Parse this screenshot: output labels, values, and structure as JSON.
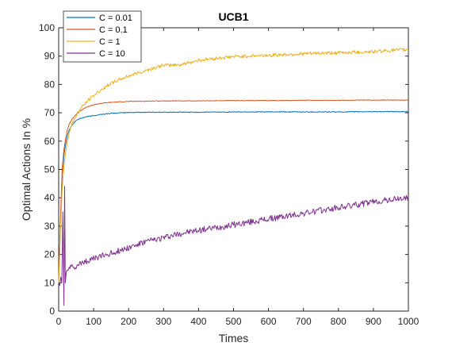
{
  "chart_data": {
    "type": "line",
    "title": "UCB1",
    "xlabel": "Times",
    "ylabel": "Optimal Actions In %",
    "xlim": [
      0,
      1000
    ],
    "ylim": [
      0,
      100
    ],
    "xticks": [
      0,
      100,
      200,
      300,
      400,
      500,
      600,
      700,
      800,
      900,
      1000
    ],
    "yticks": [
      0,
      10,
      20,
      30,
      40,
      50,
      60,
      70,
      80,
      90,
      100
    ],
    "grid": false,
    "legend_location": "top-left",
    "series": [
      {
        "name": "C = 0.01",
        "color": "#0072BD",
        "x": [
          0,
          5,
          10,
          15,
          20,
          25,
          30,
          40,
          50,
          60,
          70,
          80,
          100,
          120,
          150,
          200,
          250,
          300,
          400,
          500,
          600,
          700,
          800,
          900,
          1000
        ],
        "y": [
          10,
          30,
          48,
          55,
          59,
          62,
          64,
          66,
          67.3,
          67.9,
          68.3,
          68.6,
          69.0,
          69.4,
          69.8,
          70.1,
          70.2,
          70.2,
          70.2,
          70.3,
          70.3,
          70.3,
          70.3,
          70.4,
          70.4
        ]
      },
      {
        "name": "C = 0.1",
        "color": "#D95319",
        "x": [
          0,
          5,
          10,
          15,
          20,
          25,
          30,
          40,
          50,
          60,
          70,
          80,
          100,
          120,
          150,
          200,
          250,
          300,
          400,
          500,
          600,
          700,
          800,
          900,
          1000
        ],
        "y": [
          10,
          32,
          50,
          57,
          61,
          64,
          66,
          68,
          69.5,
          70.5,
          71.3,
          72,
          72.8,
          73.3,
          73.7,
          74.0,
          74.1,
          74.2,
          74.2,
          74.3,
          74.3,
          74.4,
          74.4,
          74.5,
          74.5
        ]
      },
      {
        "name": "C = 1",
        "color": "#EDB120",
        "x": [
          0,
          5,
          10,
          15,
          20,
          25,
          30,
          40,
          50,
          60,
          70,
          80,
          90,
          100,
          120,
          150,
          200,
          250,
          300,
          350,
          400,
          450,
          500,
          600,
          700,
          800,
          900,
          950,
          1000
        ],
        "y": [
          10,
          28,
          43,
          51,
          56,
          60,
          63,
          66.5,
          69,
          71,
          72.5,
          73.8,
          75,
          76,
          78,
          80.5,
          83,
          85,
          86.8,
          87,
          88.5,
          89.2,
          89.8,
          90.3,
          90.8,
          91.2,
          91.6,
          92,
          92.3
        ]
      },
      {
        "name": "C = 10",
        "color": "#7E2F8E",
        "x": [
          0,
          3,
          6,
          9,
          12,
          15,
          17,
          19,
          22,
          25,
          30,
          40,
          50,
          60,
          80,
          100,
          150,
          200,
          250,
          300,
          350,
          400,
          450,
          500,
          550,
          600,
          650,
          700,
          750,
          800,
          850,
          900,
          950,
          1000
        ],
        "y": [
          10,
          9,
          12,
          10,
          35,
          2,
          44,
          10,
          14,
          14.5,
          15,
          15.5,
          16,
          16.5,
          17.5,
          18.5,
          20.5,
          22.5,
          24.5,
          26,
          27.5,
          28.5,
          29.5,
          30.5,
          31.5,
          32.5,
          33.5,
          34.5,
          35.5,
          36.5,
          37.5,
          38.5,
          39.3,
          40
        ]
      }
    ]
  }
}
